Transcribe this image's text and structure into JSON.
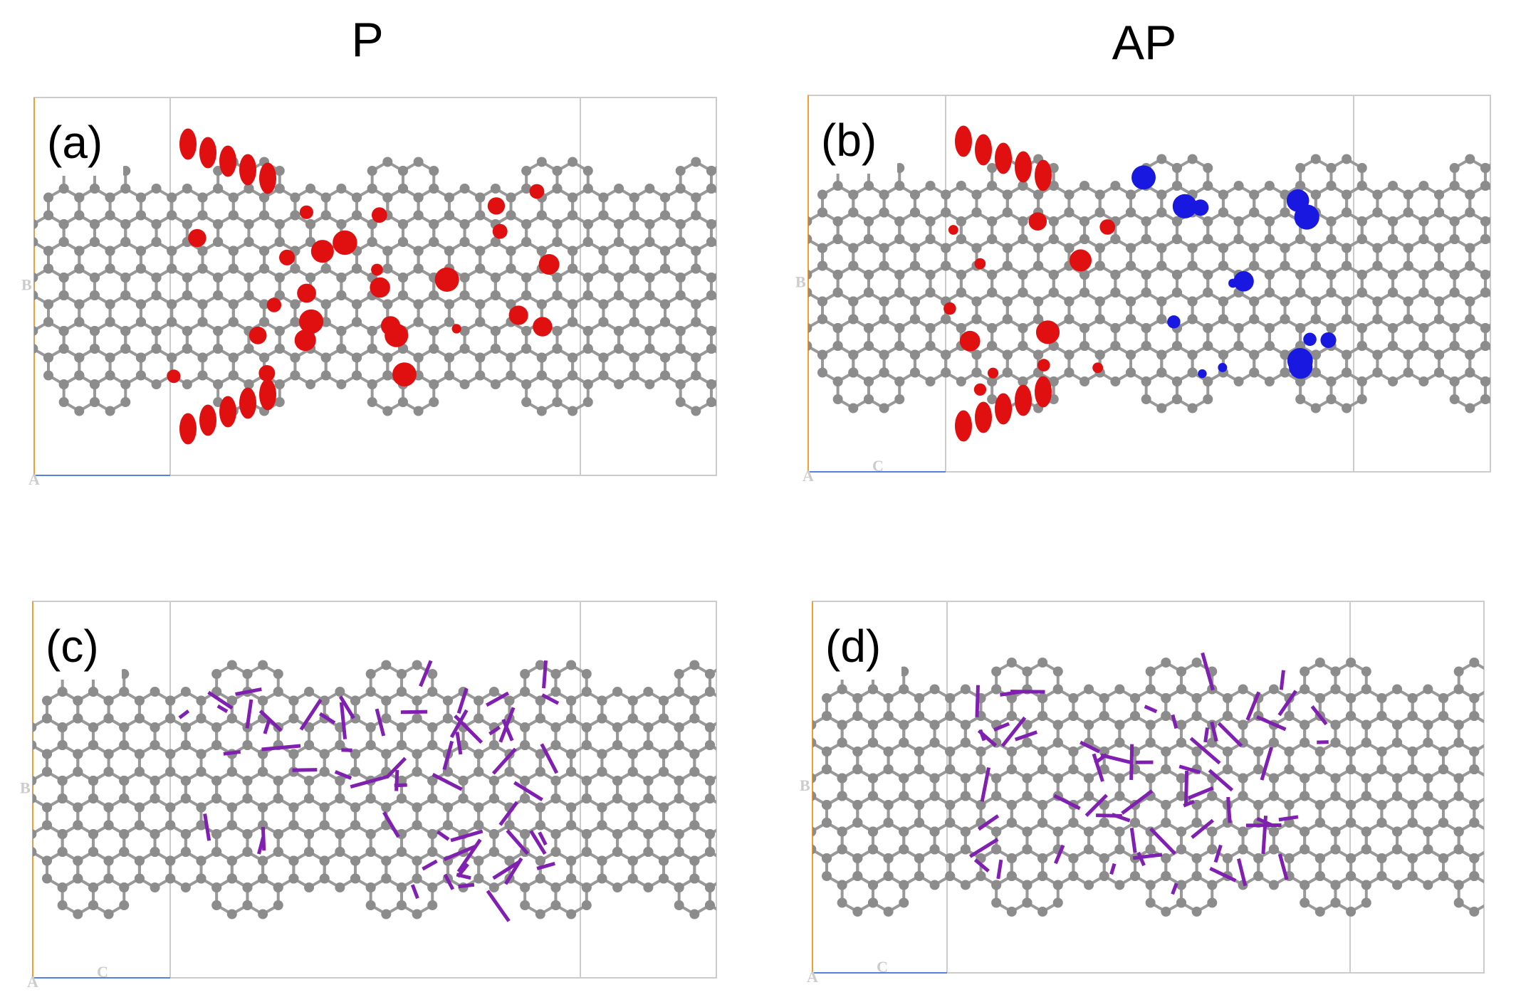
{
  "header": {
    "titles": [
      "P",
      "AP"
    ]
  },
  "panels": [
    {
      "label": "(a)",
      "axis_letters": [
        "B",
        "A"
      ]
    },
    {
      "label": "(b)",
      "axis_letters": [
        "B",
        "A",
        "C"
      ]
    },
    {
      "label": "(c)",
      "axis_letters": [
        "B",
        "A",
        "C"
      ]
    },
    {
      "label": "(d)",
      "axis_letters": [
        "B",
        "A",
        "C"
      ]
    }
  ]
}
